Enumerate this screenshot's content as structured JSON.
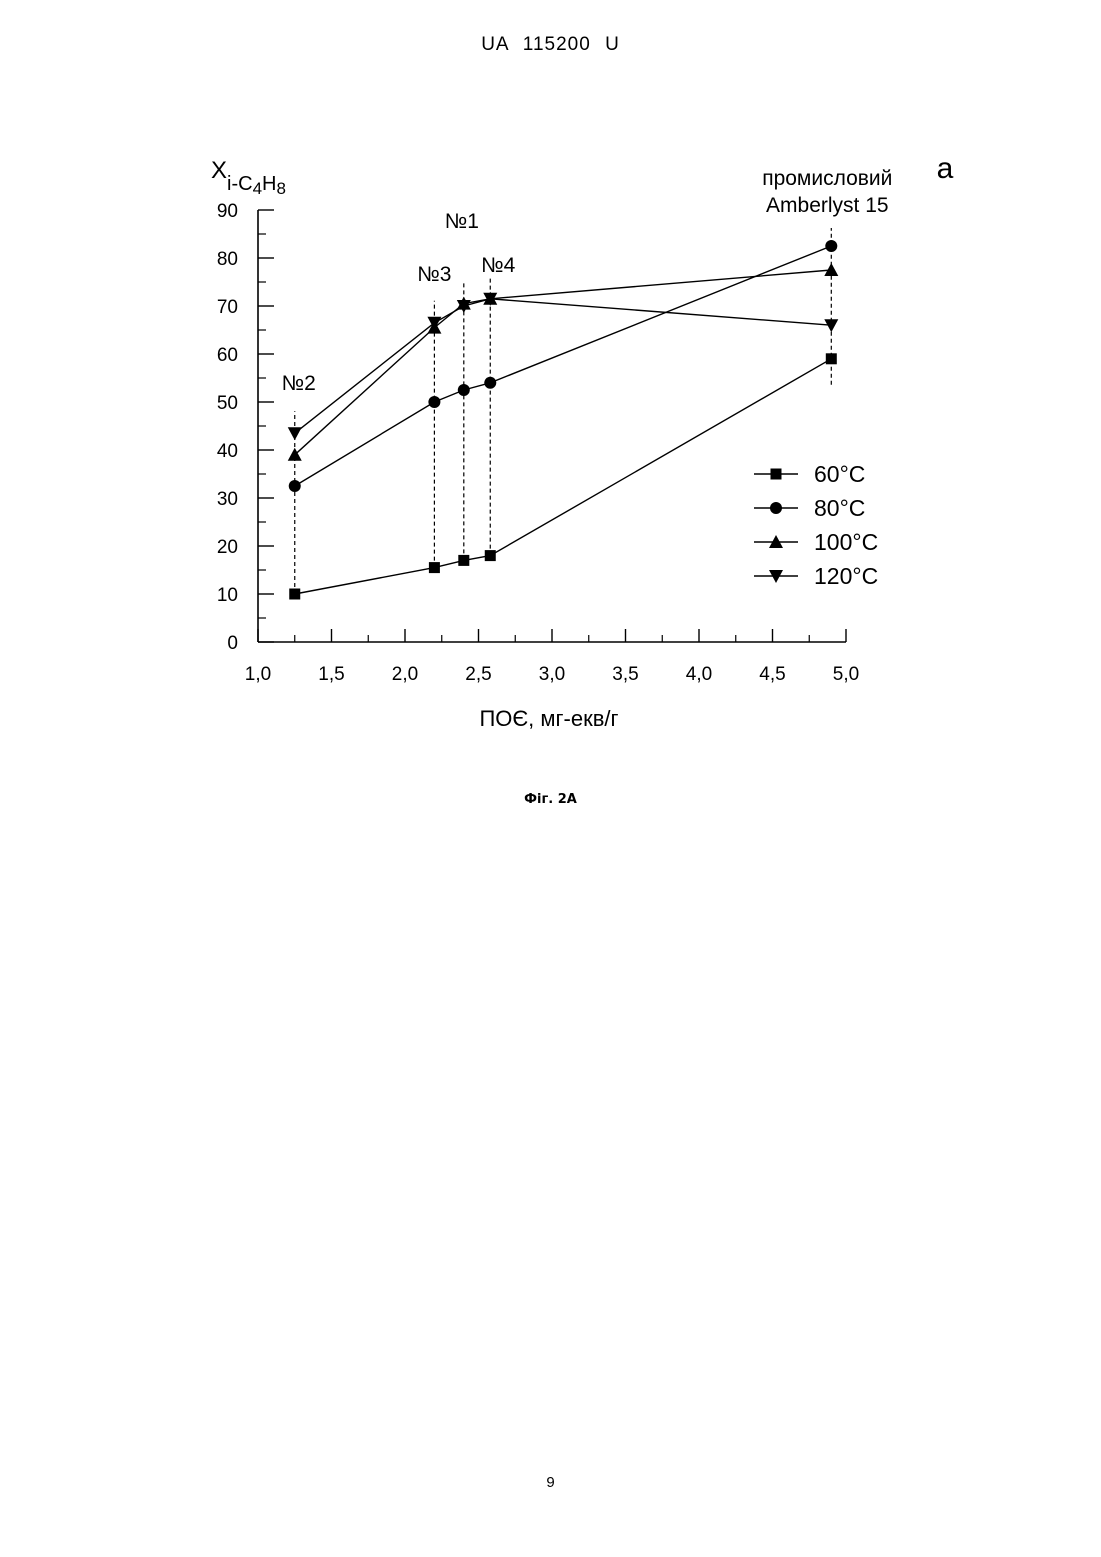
{
  "header": "UA 115200 U",
  "page_number": "9",
  "caption": "Фіг. 2А",
  "chart_data": {
    "type": "line",
    "panel_label": "а",
    "title": "",
    "xlabel": "ПОЄ, мг-екв/г",
    "ylabel": {
      "base": "X",
      "sub1": "i-C",
      "sub2": "4",
      "sub3": "H",
      "sub4": "8"
    },
    "xlim": [
      1.0,
      5.0
    ],
    "ylim": [
      0,
      90
    ],
    "x_ticks": [
      {
        "v": 1.0,
        "label": "1,0"
      },
      {
        "v": 1.5,
        "label": "1,5"
      },
      {
        "v": 2.0,
        "label": "2,0"
      },
      {
        "v": 2.5,
        "label": "2,5"
      },
      {
        "v": 3.0,
        "label": "3,0"
      },
      {
        "v": 3.5,
        "label": "3,5"
      },
      {
        "v": 4.0,
        "label": "4,0"
      },
      {
        "v": 4.5,
        "label": "4,5"
      },
      {
        "v": 5.0,
        "label": "5,0"
      }
    ],
    "y_ticks": [
      {
        "v": 0,
        "label": "0"
      },
      {
        "v": 10,
        "label": "10"
      },
      {
        "v": 20,
        "label": "20"
      },
      {
        "v": 30,
        "label": "30"
      },
      {
        "v": 40,
        "label": "40"
      },
      {
        "v": 50,
        "label": "50"
      },
      {
        "v": 60,
        "label": "60"
      },
      {
        "v": 70,
        "label": "70"
      },
      {
        "v": 80,
        "label": "80"
      },
      {
        "v": 90,
        "label": "90"
      }
    ],
    "x": [
      1.25,
      2.2,
      2.4,
      2.58,
      4.9
    ],
    "series": [
      {
        "name": "60°C",
        "marker": "square",
        "values": [
          10,
          15.5,
          17,
          18,
          59
        ]
      },
      {
        "name": "80°C",
        "marker": "circle",
        "values": [
          32.5,
          50,
          52.5,
          54,
          82.5
        ]
      },
      {
        "name": "100°C",
        "marker": "triangle-up",
        "values": [
          39,
          65.5,
          70.5,
          71.5,
          77.5
        ]
      },
      {
        "name": "120°C",
        "marker": "triangle-down",
        "values": [
          43.5,
          66.5,
          70,
          71.5,
          66
        ]
      }
    ],
    "annotations": [
      {
        "x": 1.25,
        "lines": [
          "№2"
        ]
      },
      {
        "x": 2.2,
        "lines": [
          "№3"
        ]
      },
      {
        "x": 2.4,
        "lines": [
          "№1"
        ]
      },
      {
        "x": 2.58,
        "lines": [
          "№4"
        ]
      },
      {
        "x": 4.9,
        "lines": [
          "промисловий",
          "Amberlyst 15"
        ]
      }
    ],
    "grid": false,
    "legend_position": "right"
  }
}
